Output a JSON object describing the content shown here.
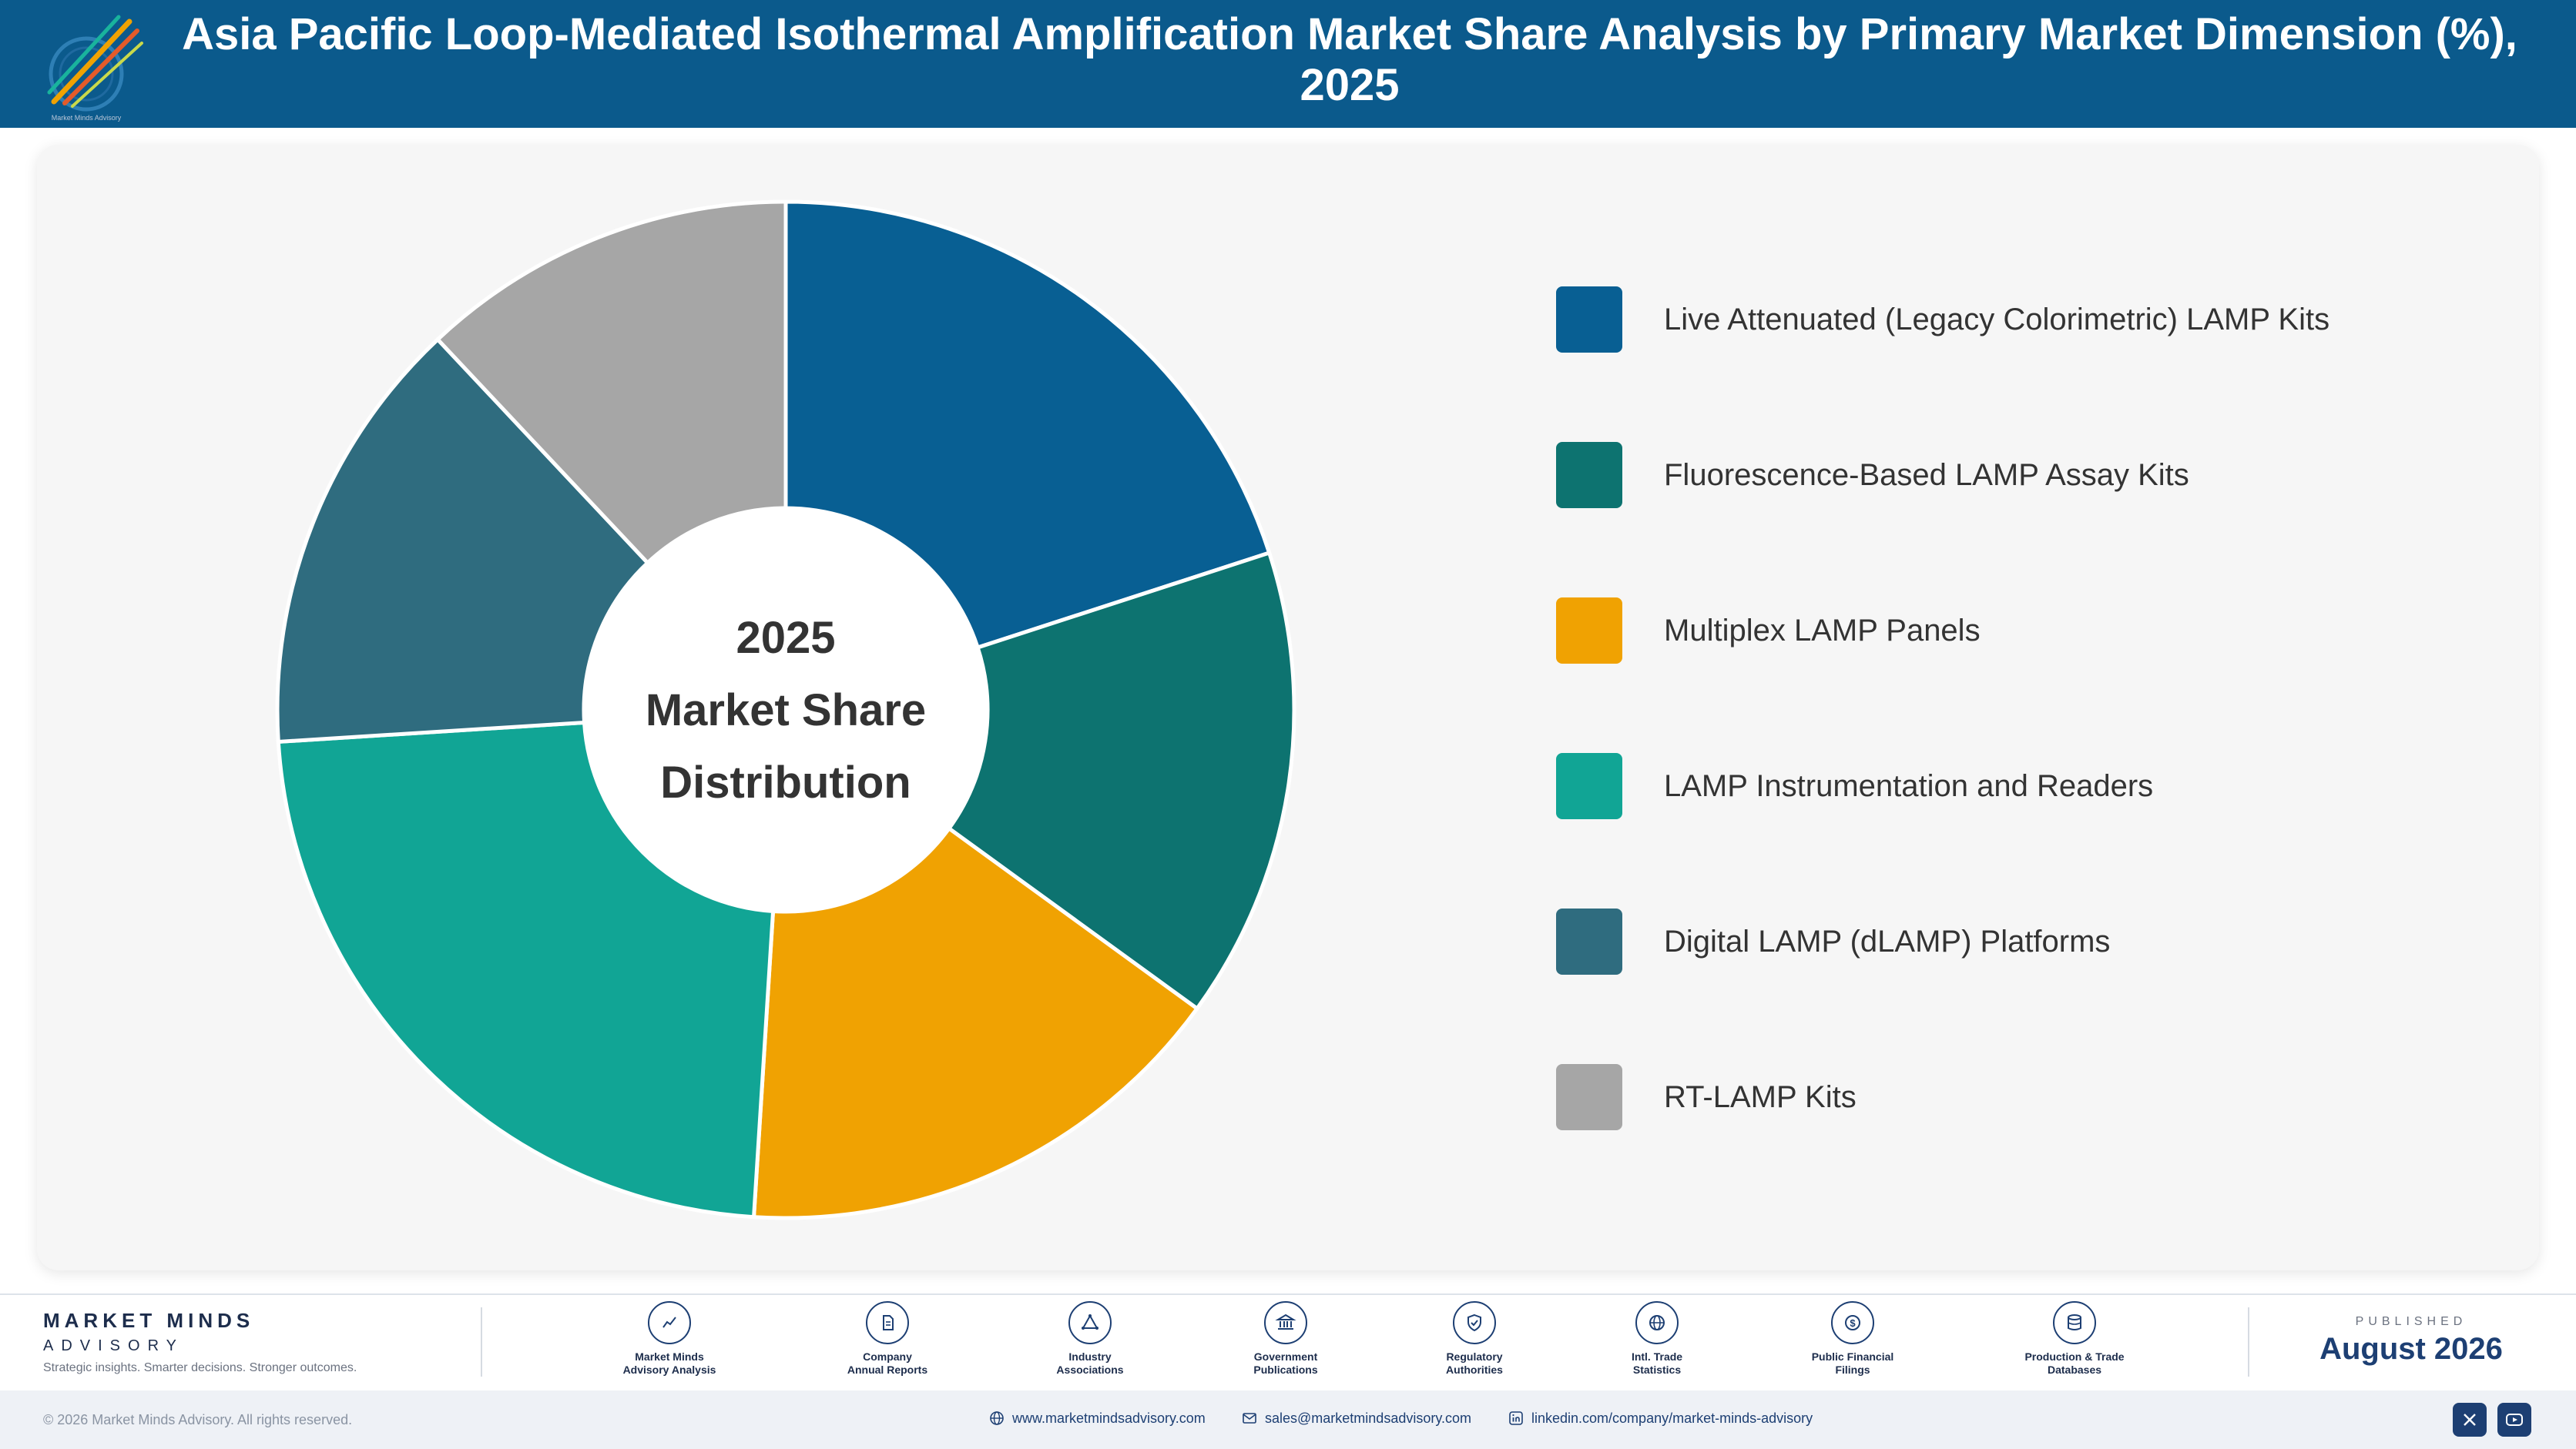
{
  "header": {
    "title": "Asia Pacific Loop-Mediated Isothermal Amplification Market Share Analysis by Primary Market Dimension (%), 2025",
    "logo_caption": "Market Minds Advisory"
  },
  "chart_data": {
    "type": "pie",
    "variant": "donut",
    "title": "Asia Pacific Loop-Mediated Isothermal Amplification Market Share Analysis by Primary Market Dimension (%), 2025",
    "center_label": [
      "2025",
      "Market Share",
      "Distribution"
    ],
    "categories": [
      "Live Attenuated (Legacy Colorimetric) LAMP Kits",
      "Fluorescence-Based LAMP Assay Kits",
      "Multiplex LAMP Panels",
      "LAMP Instrumentation and Readers",
      "Digital LAMP (dLAMP) Platforms",
      "RT-LAMP Kits"
    ],
    "values": [
      20,
      15,
      16,
      23,
      14,
      12
    ],
    "colors": [
      "#085f93",
      "#0d7370",
      "#f0a202",
      "#11a595",
      "#2f6c7f",
      "#a6a6a6"
    ],
    "legend_position": "right",
    "data_labels": false
  },
  "footer": {
    "brand_name": "MARKET MINDS",
    "brand_sub": "ADVISORY",
    "brand_tagline": "Strategic insights. Smarter decisions. Stronger outcomes.",
    "sources": [
      {
        "line1": "Market Minds",
        "line2": "Advisory Analysis",
        "icon": "chart-line-icon"
      },
      {
        "line1": "Company",
        "line2": "Annual Reports",
        "icon": "document-icon"
      },
      {
        "line1": "Industry",
        "line2": "Associations",
        "icon": "network-icon"
      },
      {
        "line1": "Government",
        "line2": "Publications",
        "icon": "government-building-icon"
      },
      {
        "line1": "Regulatory",
        "line2": "Authorities",
        "icon": "shield-check-icon"
      },
      {
        "line1": "Intl. Trade",
        "line2": "Statistics",
        "icon": "globe-icon"
      },
      {
        "line1": "Public Financial",
        "line2": "Filings",
        "icon": "dollar-coin-icon"
      },
      {
        "line1": "Production & Trade",
        "line2": "Databases",
        "icon": "database-icon"
      }
    ],
    "published_label": "PUBLISHED",
    "published_date": "August 2026",
    "copyright": "© 2026 Market Minds Advisory. All rights reserved.",
    "website": "www.marketmindsadvisory.com",
    "email": "sales@marketmindsadvisory.com",
    "linkedin": "linkedin.com/company/market-minds-advisory"
  }
}
